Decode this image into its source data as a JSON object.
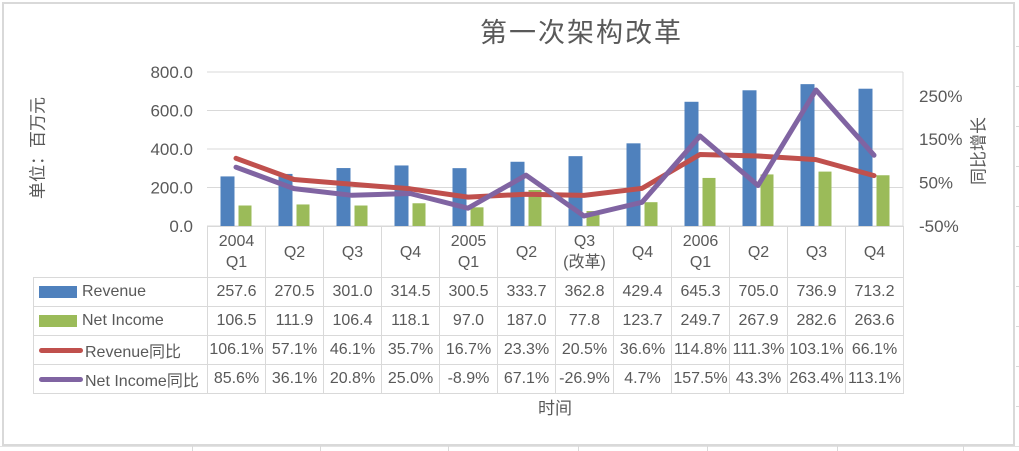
{
  "colors": {
    "text": "#595959",
    "grid_border": "#D9D9D9",
    "background": "#FFFFFF",
    "revenue_bar": "#4F81BD",
    "net_income_bar": "#9BBB59",
    "revenue_yoy_line": "#C0504D",
    "net_income_yoy_line": "#8064A2"
  },
  "chart_data": {
    "type": "combo",
    "title": "第一次架构改革",
    "x_axis_title": "时间",
    "grid": true,
    "legend_position": "data-table-left",
    "left_axis": {
      "title": "单位：百万元",
      "min": 0,
      "max": 800,
      "tick_values": [
        800,
        600,
        400,
        200,
        0
      ],
      "tick_labels": [
        "800.0",
        "600.0",
        "400.0",
        "200.0",
        "0.0"
      ]
    },
    "right_axis": {
      "title": "同比增长",
      "min": -50,
      "max": 305,
      "tick_values": [
        250,
        150,
        50,
        -50
      ],
      "tick_labels": [
        "250%",
        "150%",
        "50%",
        "-50%"
      ]
    },
    "categories": [
      "2004\nQ1",
      "Q2",
      "Q3",
      "Q4",
      "2005\nQ1",
      "Q2",
      "Q3\n(改革)",
      "Q4",
      "2006\nQ1",
      "Q2",
      "Q3",
      "Q4"
    ],
    "series": [
      {
        "name": "Revenue",
        "type": "bar",
        "axis": "left",
        "color": "#4F81BD",
        "values": [
          257.6,
          270.5,
          301.0,
          314.5,
          300.5,
          333.7,
          362.8,
          429.4,
          645.3,
          705.0,
          736.9,
          713.2
        ],
        "labels": [
          "257.6",
          "270.5",
          "301.0",
          "314.5",
          "300.5",
          "333.7",
          "362.8",
          "429.4",
          "645.3",
          "705.0",
          "736.9",
          "713.2"
        ]
      },
      {
        "name": "Net Income",
        "type": "bar",
        "axis": "left",
        "color": "#9BBB59",
        "values": [
          106.5,
          111.9,
          106.4,
          118.1,
          97.0,
          187.0,
          77.8,
          123.7,
          249.7,
          267.9,
          282.6,
          263.6
        ],
        "labels": [
          "106.5",
          "111.9",
          "106.4",
          "118.1",
          "97.0",
          "187.0",
          "77.8",
          "123.7",
          "249.7",
          "267.9",
          "282.6",
          "263.6"
        ]
      },
      {
        "name": "Revenue同比",
        "type": "line",
        "axis": "right",
        "color": "#C0504D",
        "values": [
          106.1,
          57.1,
          46.1,
          35.7,
          16.7,
          23.3,
          20.5,
          36.6,
          114.8,
          111.3,
          103.1,
          66.1
        ],
        "labels": [
          "106.1%",
          "57.1%",
          "46.1%",
          "35.7%",
          "16.7%",
          "23.3%",
          "20.5%",
          "36.6%",
          "114.8%",
          "111.3%",
          "103.1%",
          "66.1%"
        ]
      },
      {
        "name": "Net Income同比",
        "type": "line",
        "axis": "right",
        "color": "#8064A2",
        "values": [
          85.6,
          36.1,
          20.8,
          25.0,
          -8.9,
          67.1,
          -26.9,
          4.7,
          157.5,
          43.3,
          263.4,
          113.1
        ],
        "labels": [
          "85.6%",
          "36.1%",
          "20.8%",
          "25.0%",
          "-8.9%",
          "67.1%",
          "-26.9%",
          "4.7%",
          "157.5%",
          "43.3%",
          "263.4%",
          "113.1%"
        ]
      }
    ]
  }
}
